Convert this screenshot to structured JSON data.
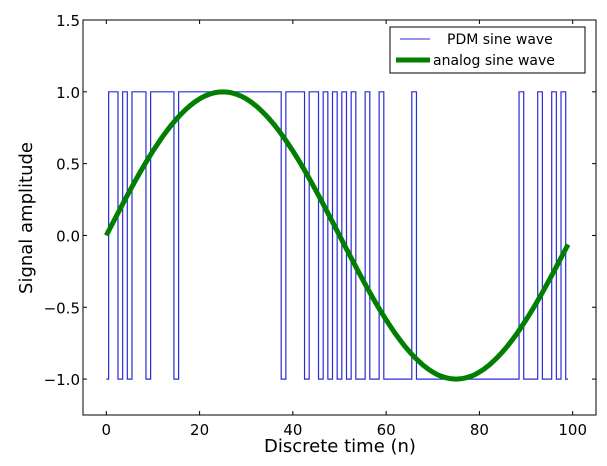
{
  "chart_data": {
    "type": "line",
    "title": "",
    "xlabel": "Discrete time (n)",
    "ylabel": "Signal amplitude",
    "xlim": [
      -5,
      105
    ],
    "ylim": [
      -1.25,
      1.5
    ],
    "xticks": [
      0,
      20,
      40,
      60,
      80,
      100
    ],
    "xtick_labels": [
      "0",
      "20",
      "40",
      "60",
      "80",
      "100"
    ],
    "yticks": [
      1.5,
      1.0,
      0.5,
      0.0,
      -0.5,
      -1.0
    ],
    "ytick_labels": [
      "1.5",
      "1.0",
      "0.5",
      "0.0",
      "−0.5",
      "−1.0"
    ],
    "grid": false,
    "legend_position": "top-right",
    "series": [
      {
        "name": "PDM sine wave",
        "color": "#2b2bd6",
        "style": "steps",
        "values": [
          -1,
          1,
          1,
          -1,
          1,
          -1,
          1,
          1,
          1,
          -1,
          1,
          1,
          1,
          1,
          1,
          -1,
          1,
          1,
          1,
          1,
          1,
          1,
          1,
          1,
          1,
          1,
          1,
          1,
          1,
          1,
          1,
          1,
          1,
          1,
          1,
          1,
          1,
          1,
          -1,
          1,
          1,
          1,
          1,
          -1,
          1,
          1,
          -1,
          1,
          -1,
          1,
          -1,
          1,
          -1,
          1,
          -1,
          -1,
          1,
          -1,
          -1,
          1,
          -1,
          -1,
          -1,
          -1,
          -1,
          -1,
          1,
          -1,
          -1,
          -1,
          -1,
          -1,
          -1,
          -1,
          -1,
          -1,
          -1,
          -1,
          -1,
          -1,
          -1,
          -1,
          -1,
          -1,
          -1,
          -1,
          -1,
          -1,
          -1,
          1,
          -1,
          -1,
          -1,
          1,
          -1,
          -1,
          1,
          -1,
          1,
          -1
        ]
      },
      {
        "name": "analog sine wave",
        "color": "#007f00",
        "style": "line",
        "values": [
          0,
          0.063,
          0.125,
          0.187,
          0.249,
          0.309,
          0.368,
          0.426,
          0.482,
          0.536,
          0.588,
          0.637,
          0.685,
          0.729,
          0.771,
          0.809,
          0.844,
          0.876,
          0.905,
          0.93,
          0.951,
          0.969,
          0.982,
          0.992,
          0.998,
          1,
          0.998,
          0.992,
          0.982,
          0.969,
          0.951,
          0.93,
          0.905,
          0.876,
          0.844,
          0.809,
          0.771,
          0.729,
          0.685,
          0.637,
          0.588,
          0.536,
          0.482,
          0.426,
          0.368,
          0.309,
          0.249,
          0.187,
          0.125,
          0.063,
          0,
          -0.063,
          -0.125,
          -0.187,
          -0.249,
          -0.309,
          -0.368,
          -0.426,
          -0.482,
          -0.536,
          -0.588,
          -0.637,
          -0.685,
          -0.729,
          -0.771,
          -0.809,
          -0.844,
          -0.876,
          -0.905,
          -0.93,
          -0.951,
          -0.969,
          -0.982,
          -0.992,
          -0.998,
          -1,
          -0.998,
          -0.992,
          -0.982,
          -0.969,
          -0.951,
          -0.93,
          -0.905,
          -0.876,
          -0.844,
          -0.809,
          -0.771,
          -0.729,
          -0.685,
          -0.637,
          -0.588,
          -0.536,
          -0.482,
          -0.426,
          -0.368,
          -0.309,
          -0.249,
          -0.187,
          -0.125,
          -0.063
        ]
      }
    ]
  }
}
